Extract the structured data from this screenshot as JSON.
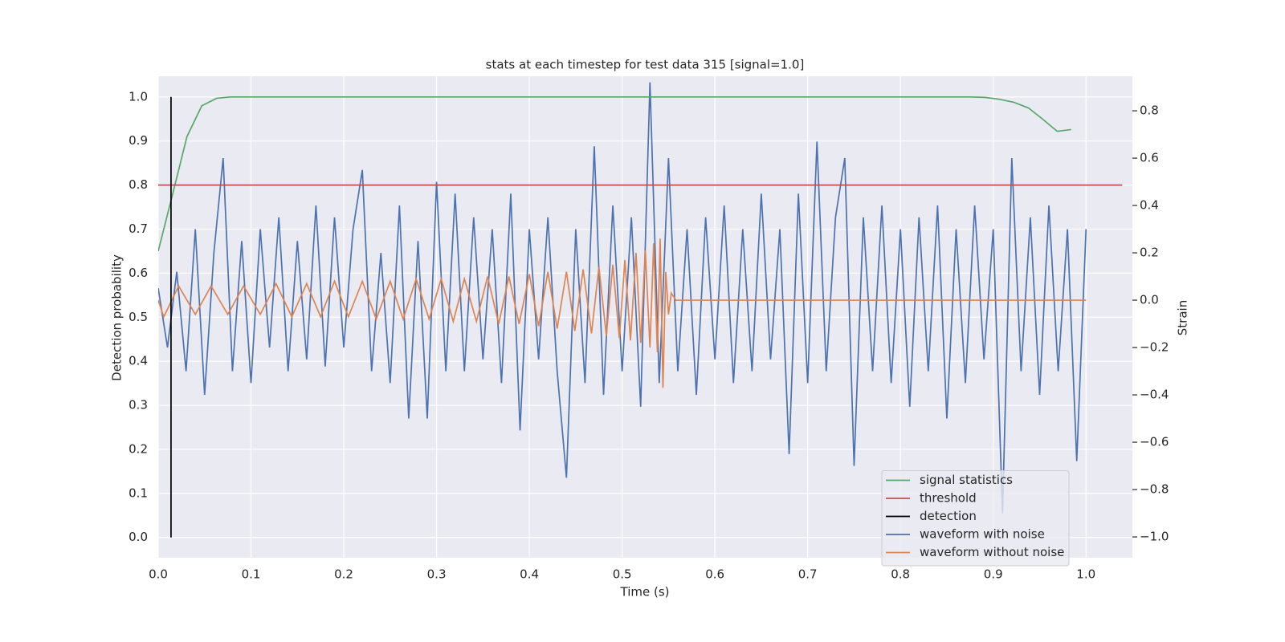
{
  "chart_data": {
    "type": "line",
    "title": "stats at each timestep for test data 315 [signal=1.0]",
    "xlabel": "Time (s)",
    "ylabel": "Detection probability",
    "y2label": "Strain",
    "xlim": [
      0,
      1.05
    ],
    "ylim": [
      -0.046,
      1.047
    ],
    "y2lim": [
      -1.088,
      0.946
    ],
    "xticks": [
      {
        "value": 0,
        "label": "0.0"
      },
      0.1,
      0.2,
      0.3,
      0.4,
      0.5,
      0.6,
      0.7,
      0.8,
      0.9,
      {
        "value": 1,
        "label": "1.0"
      }
    ],
    "yticks": [
      {
        "value": 0,
        "label": "0.0"
      },
      0.1,
      0.2,
      0.3,
      0.4,
      0.5,
      0.6,
      0.7,
      0.8,
      0.9,
      {
        "value": 1,
        "label": "1.0"
      }
    ],
    "y2ticks": [
      {
        "value": -1,
        "label": "−1.0"
      },
      {
        "value": -0.8,
        "label": "−0.8"
      },
      {
        "value": -0.6,
        "label": "−0.6"
      },
      {
        "value": -0.4,
        "label": "−0.4"
      },
      {
        "value": -0.2,
        "label": "−0.2"
      },
      {
        "value": 0,
        "label": "0.0"
      },
      0.2,
      0.4,
      0.6,
      0.8
    ],
    "grid": true,
    "legend": "lower right",
    "series": [
      {
        "name": "signal statistics",
        "color": "#55a868",
        "axis": "y",
        "x": [
          0,
          0.0156,
          0.031,
          0.047,
          0.063,
          0.078,
          0.094,
          0.5,
          0.875,
          0.891,
          0.906,
          0.922,
          0.938,
          0.953,
          0.969,
          0.984
        ],
        "values": [
          0.65,
          0.78,
          0.91,
          0.98,
          0.997,
          1.0,
          1.0,
          1.0,
          1.0,
          0.999,
          0.995,
          0.988,
          0.975,
          0.95,
          0.922,
          0.926
        ]
      },
      {
        "name": "threshold",
        "color": "#c44e52",
        "axis": "y",
        "x": [
          0,
          1.039
        ],
        "values": [
          0.8,
          0.8
        ]
      },
      {
        "name": "detection",
        "color": "#000000",
        "axis": "y",
        "x": [
          0.0138,
          0.0138
        ],
        "values": [
          0,
          1.0
        ]
      },
      {
        "name": "waveform with noise",
        "color": "#4c72b0",
        "axis": "y2",
        "x": [
          0,
          0.01,
          0.02,
          0.03,
          0.04,
          0.05,
          0.06,
          0.07,
          0.08,
          0.09,
          0.1,
          0.11,
          0.12,
          0.13,
          0.14,
          0.15,
          0.16,
          0.17,
          0.18,
          0.19,
          0.2,
          0.21,
          0.22,
          0.23,
          0.24,
          0.25,
          0.26,
          0.27,
          0.28,
          0.29,
          0.3,
          0.31,
          0.32,
          0.33,
          0.34,
          0.35,
          0.36,
          0.37,
          0.38,
          0.39,
          0.4,
          0.41,
          0.42,
          0.43,
          0.44,
          0.45,
          0.46,
          0.47,
          0.48,
          0.49,
          0.5,
          0.51,
          0.52,
          0.53,
          0.54,
          0.55,
          0.56,
          0.57,
          0.58,
          0.59,
          0.6,
          0.61,
          0.62,
          0.63,
          0.64,
          0.65,
          0.66,
          0.67,
          0.68,
          0.69,
          0.7,
          0.71,
          0.72,
          0.73,
          0.74,
          0.75,
          0.76,
          0.77,
          0.78,
          0.79,
          0.8,
          0.81,
          0.82,
          0.83,
          0.84,
          0.85,
          0.86,
          0.87,
          0.88,
          0.89,
          0.9,
          0.91,
          0.92,
          0.93,
          0.94,
          0.95,
          0.96,
          0.97,
          0.98,
          0.99,
          1.0
        ],
        "values": [
          0.05,
          -0.2,
          0.12,
          -0.3,
          0.3,
          -0.4,
          0.2,
          0.6,
          -0.3,
          0.25,
          -0.35,
          0.3,
          -0.2,
          0.35,
          -0.3,
          0.25,
          -0.25,
          0.4,
          -0.28,
          0.35,
          -0.2,
          0.3,
          0.55,
          -0.3,
          0.2,
          -0.35,
          0.4,
          -0.5,
          0.25,
          -0.5,
          0.5,
          -0.3,
          0.45,
          -0.3,
          0.35,
          -0.25,
          0.3,
          -0.35,
          0.45,
          -0.55,
          0.3,
          -0.25,
          0.35,
          -0.3,
          -0.75,
          0.3,
          -0.35,
          0.65,
          -0.4,
          0.4,
          -0.3,
          0.35,
          -0.45,
          0.92,
          -0.35,
          0.6,
          -0.3,
          0.3,
          -0.4,
          0.35,
          -0.25,
          0.4,
          -0.35,
          0.3,
          -0.3,
          0.45,
          -0.25,
          0.3,
          -0.65,
          0.45,
          -0.35,
          0.67,
          -0.3,
          0.35,
          0.6,
          -0.7,
          0.35,
          -0.3,
          0.4,
          -0.35,
          0.3,
          -0.45,
          0.35,
          -0.3,
          0.4,
          -0.5,
          0.3,
          -0.35,
          0.4,
          -0.25,
          0.3,
          -0.9,
          0.6,
          -0.3,
          0.35,
          -0.4,
          0.4,
          -0.3,
          0.3,
          -0.68,
          0.3
        ]
      },
      {
        "name": "waveform without noise",
        "color": "#dd8452",
        "axis": "y2",
        "x": [
          0,
          0.006,
          0.022,
          0.04,
          0.057,
          0.075,
          0.092,
          0.11,
          0.127,
          0.144,
          0.16,
          0.175,
          0.19,
          0.205,
          0.22,
          0.235,
          0.25,
          0.264,
          0.278,
          0.292,
          0.305,
          0.318,
          0.33,
          0.343,
          0.355,
          0.367,
          0.378,
          0.389,
          0.4,
          0.41,
          0.42,
          0.43,
          0.44,
          0.449,
          0.458,
          0.467,
          0.475,
          0.483,
          0.49,
          0.497,
          0.503,
          0.509,
          0.515,
          0.52,
          0.525,
          0.53,
          0.534,
          0.538,
          0.541,
          0.544,
          0.547,
          0.55,
          0.553,
          0.558,
          1.0
        ],
        "values": [
          0,
          -0.07,
          0.06,
          -0.06,
          0.06,
          -0.06,
          0.06,
          -0.06,
          0.07,
          -0.07,
          0.07,
          -0.07,
          0.08,
          -0.07,
          0.08,
          -0.08,
          0.08,
          -0.08,
          0.09,
          -0.08,
          0.09,
          -0.09,
          0.09,
          -0.09,
          0.1,
          -0.1,
          0.1,
          -0.1,
          0.11,
          -0.11,
          0.12,
          -0.12,
          0.12,
          -0.13,
          0.13,
          -0.14,
          0.14,
          -0.15,
          0.15,
          -0.16,
          0.17,
          -0.17,
          0.2,
          -0.18,
          0.21,
          -0.2,
          0.24,
          -0.22,
          0.26,
          -0.37,
          0.12,
          -0.06,
          0.03,
          0,
          0
        ]
      }
    ]
  }
}
